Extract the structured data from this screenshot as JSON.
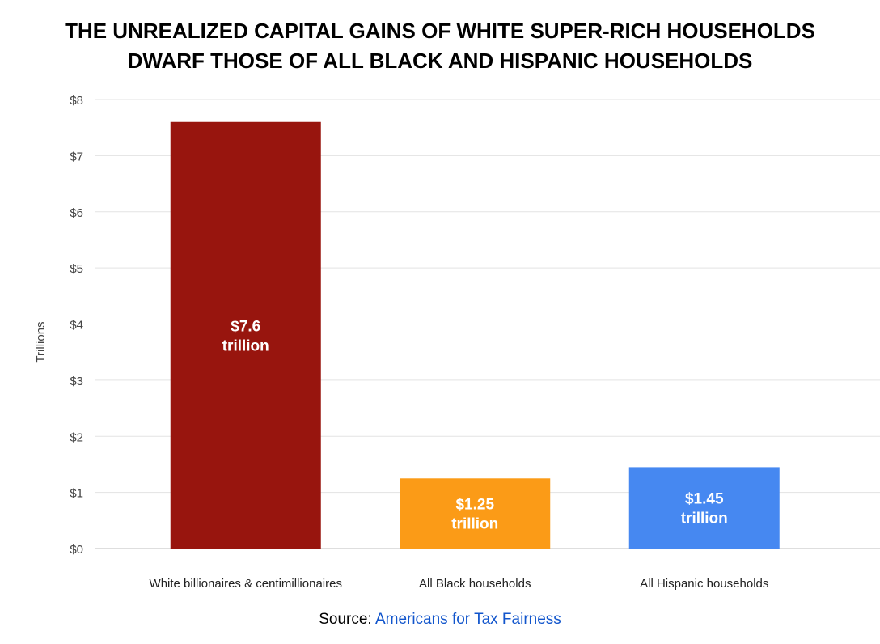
{
  "title_lines": [
    "THE UNREALIZED CAPITAL GAINS OF WHITE SUPER-RICH HOUSEHOLDS",
    "DWARF THOSE OF ALL BLACK AND HISPANIC HOUSEHOLDS"
  ],
  "source": {
    "label": "Source:",
    "link_text": "Americans for Tax Fairness"
  },
  "chart_data": {
    "type": "bar",
    "title": "THE UNREALIZED CAPITAL GAINS OF WHITE SUPER-RICH HOUSEHOLDS DWARF THOSE OF ALL BLACK AND HISPANIC HOUSEHOLDS",
    "ylabel": "Trillions",
    "xlabel": "",
    "categories": [
      "White billionaires & centimillionaires",
      "All Black households",
      "All Hispanic households"
    ],
    "values": [
      7.6,
      1.25,
      1.45
    ],
    "data_labels": [
      [
        "$7.6",
        "trillion"
      ],
      [
        "$1.25",
        "trillion"
      ],
      [
        "$1.45",
        "trillion"
      ]
    ],
    "colors": [
      "#98150e",
      "#fb9b17",
      "#4688f1"
    ],
    "ylim": [
      0,
      8
    ],
    "yticks": [
      0,
      1,
      2,
      3,
      4,
      5,
      6,
      7,
      8
    ],
    "ytick_labels": [
      "$0",
      "$1",
      "$2",
      "$3",
      "$4",
      "$5",
      "$6",
      "$7",
      "$8"
    ],
    "grid": true,
    "legend": "none"
  }
}
